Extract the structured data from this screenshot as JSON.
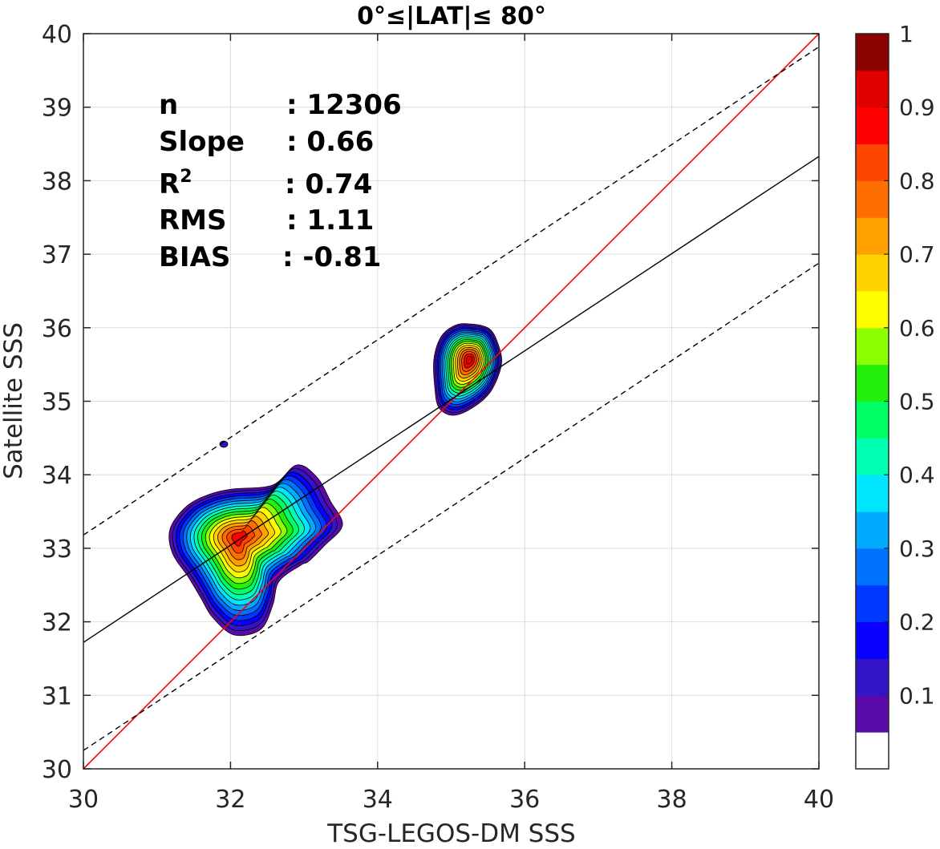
{
  "chart_data": {
    "type": "contour-density-scatter",
    "title": "0°≤|LAT|≤ 80°",
    "xlabel": "TSG-LEGOS-DM SSS",
    "ylabel": "Satellite SSS",
    "xlim": [
      30,
      40
    ],
    "ylim": [
      30,
      40
    ],
    "xticks": [
      30,
      32,
      34,
      36,
      38,
      40
    ],
    "yticks": [
      30,
      31,
      32,
      33,
      34,
      35,
      36,
      37,
      38,
      39,
      40
    ],
    "grid": true,
    "stats": [
      {
        "key": "n",
        "value": ": 12306"
      },
      {
        "key": "Slope",
        "value": ": 0.66"
      },
      {
        "key": "R",
        "sup": "2",
        "value": ": 0.74"
      },
      {
        "key": "RMS",
        "value": ": 1.11"
      },
      {
        "key": "BIAS",
        "value": ": -0.81"
      }
    ],
    "lines": {
      "one_to_one": {
        "color": "#ff0000",
        "slope": 1,
        "intercept": 0
      },
      "regression": {
        "color": "#000000",
        "points": [
          [
            30,
            31.72
          ],
          [
            40,
            38.33
          ]
        ]
      },
      "upper_bound": {
        "color": "#000000",
        "dashed": true,
        "points": [
          [
            30,
            33.18
          ],
          [
            40,
            39.82
          ]
        ]
      },
      "lower_bound": {
        "color": "#000000",
        "dashed": true,
        "points": [
          [
            30,
            30.25
          ],
          [
            40,
            36.88
          ]
        ]
      }
    },
    "density_peaks": [
      {
        "x": 32.1,
        "y": 33.15,
        "max_density": 0.85
      },
      {
        "x": 35.25,
        "y": 35.57,
        "max_density": 0.92
      }
    ],
    "colorbar": {
      "range": [
        0,
        1
      ],
      "ticks": [
        0.1,
        0.2,
        0.3,
        0.4,
        0.5,
        0.6,
        0.7,
        0.8,
        0.9,
        1
      ],
      "tick_labels": [
        "0.1",
        "0.2",
        "0.3",
        "0.4",
        "0.5",
        "0.6",
        "0.7",
        "0.8",
        "0.9",
        "1"
      ],
      "colors": [
        "#ffffff",
        "#5a0aa8",
        "#3414c8",
        "#0a00ff",
        "#0038ff",
        "#0072ff",
        "#00aaff",
        "#00e6ff",
        "#00ffb0",
        "#00ff64",
        "#22f00a",
        "#8cff00",
        "#ffff00",
        "#ffd200",
        "#ffa000",
        "#ff6e00",
        "#ff4600",
        "#ff0000",
        "#e00000",
        "#8b0000"
      ]
    }
  }
}
